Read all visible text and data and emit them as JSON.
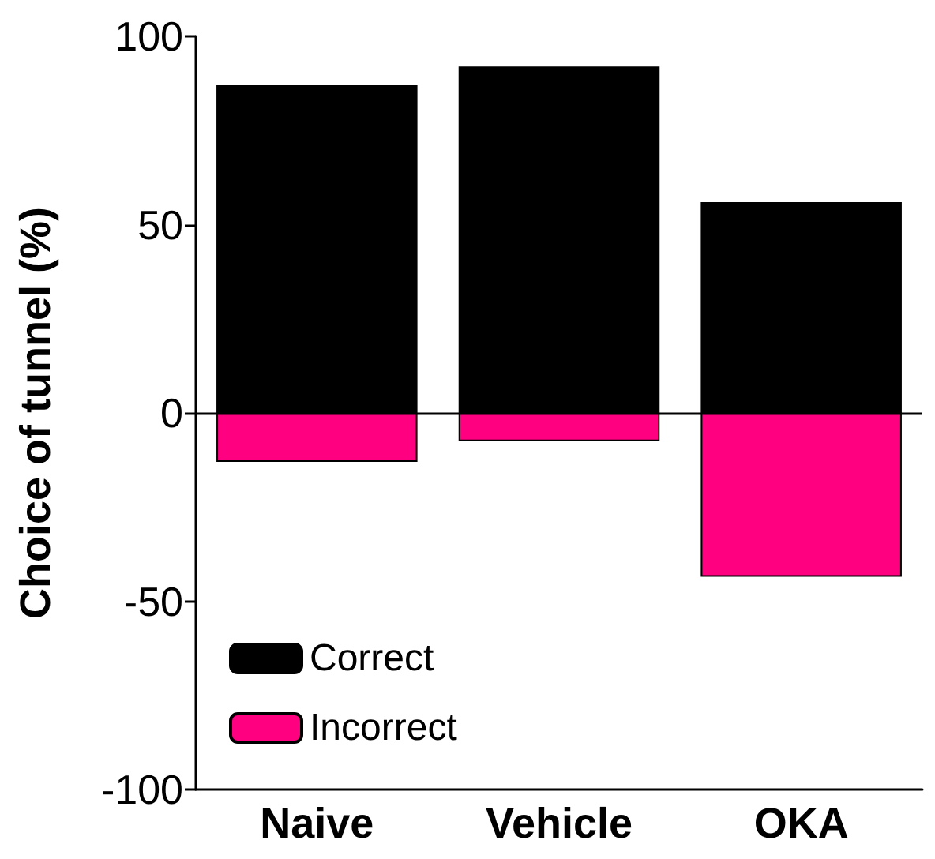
{
  "chart_data": {
    "type": "bar",
    "ylabel": "Choice of tunnel (%)",
    "categories": [
      "Naive",
      "Vehicle",
      "OKA"
    ],
    "series": [
      {
        "name": "Correct",
        "color": "#000000",
        "values": [
          87,
          92,
          56
        ]
      },
      {
        "name": "Incorrect",
        "color": "#ff0080",
        "values": [
          -13,
          -7.5,
          -43.5
        ]
      }
    ],
    "stacked": true,
    "ylim": [
      -100,
      100
    ],
    "yticks": [
      -100,
      -50,
      0,
      50,
      100
    ],
    "grid": false,
    "legend": "bottom left",
    "ref_lines": [
      {
        "axis": "y",
        "value": 0,
        "color": "#000000"
      }
    ]
  }
}
